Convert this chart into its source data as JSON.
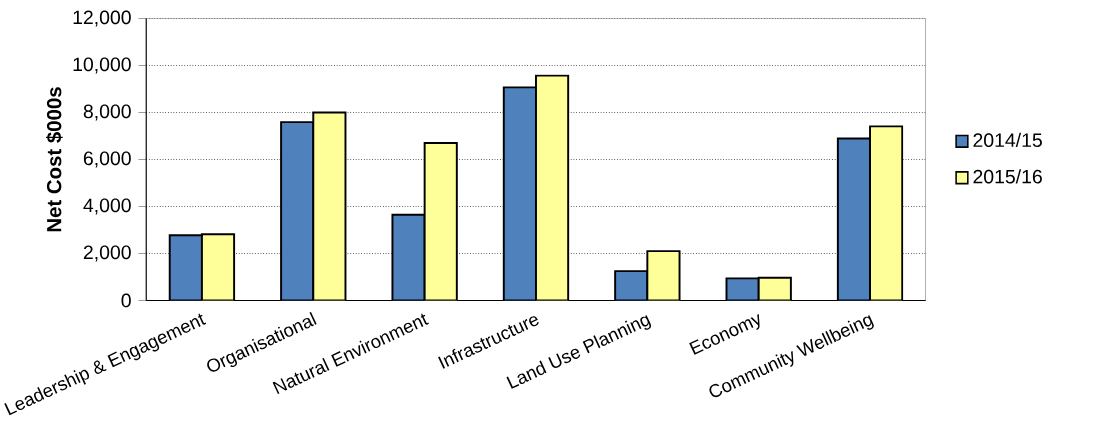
{
  "chart_data": {
    "type": "bar",
    "ylabel": "Net Cost $000s",
    "categories": [
      "Leadership & Engagement",
      "Organisational",
      "Natural Environment",
      "Infrastructure",
      "Land Use Planning",
      "Economy",
      "Community Wellbeing"
    ],
    "series": [
      {
        "name": "2014/15",
        "color": "#4f81bd",
        "values": [
          2780,
          7590,
          3650,
          9070,
          1250,
          940,
          6890
        ]
      },
      {
        "name": "2015/16",
        "color": "#ffff99",
        "values": [
          2820,
          8000,
          6700,
          9570,
          2100,
          970,
          7410
        ]
      }
    ],
    "ylim": [
      0,
      12000
    ],
    "yticks": [
      {
        "value": 0,
        "label": "0"
      },
      {
        "value": 2000,
        "label": "2,000"
      },
      {
        "value": 4000,
        "label": "4,000"
      },
      {
        "value": 6000,
        "label": "6,000"
      },
      {
        "value": 8000,
        "label": "8,000"
      },
      {
        "value": 10000,
        "label": "10,000"
      },
      {
        "value": 12000,
        "label": "12,000"
      }
    ],
    "grid": "y",
    "legend": "right"
  }
}
